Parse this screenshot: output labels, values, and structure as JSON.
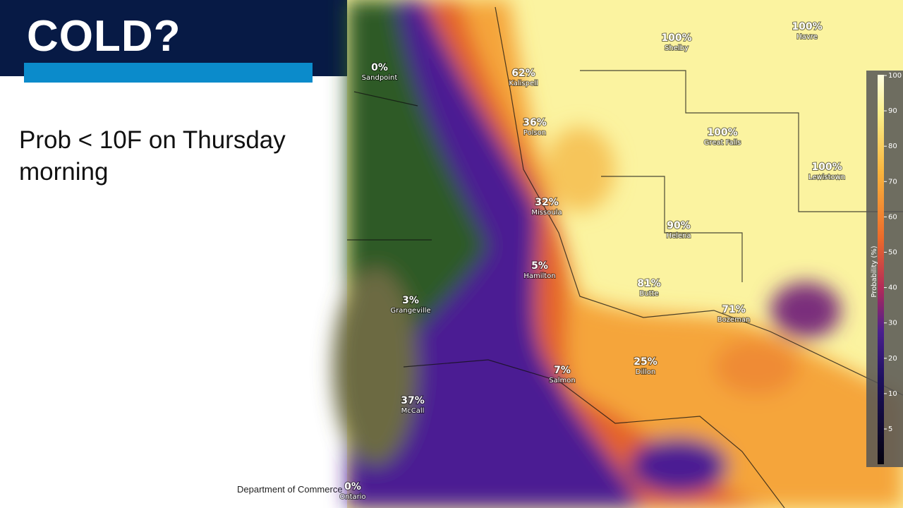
{
  "header": {
    "title": "COLD?"
  },
  "subtitle": "Prob < 10F on Thursday morning",
  "footer": "Department of Commerce",
  "map": {
    "cities": [
      {
        "name": "Sandpoint",
        "prob": "0%"
      },
      {
        "name": "Kalispell",
        "prob": "62%"
      },
      {
        "name": "Shelby",
        "prob": "100%"
      },
      {
        "name": "Havre",
        "prob": "100%"
      },
      {
        "name": "Polson",
        "prob": "36%"
      },
      {
        "name": "Great Falls",
        "prob": "100%"
      },
      {
        "name": "Lewistown",
        "prob": "100%"
      },
      {
        "name": "Missoula",
        "prob": "32%"
      },
      {
        "name": "Helena",
        "prob": "90%"
      },
      {
        "name": "Hamilton",
        "prob": "5%"
      },
      {
        "name": "Butte",
        "prob": "81%"
      },
      {
        "name": "Bozeman",
        "prob": "71%"
      },
      {
        "name": "Grangeville",
        "prob": "3%"
      },
      {
        "name": "Salmon",
        "prob": "7%"
      },
      {
        "name": "Dillon",
        "prob": "25%"
      },
      {
        "name": "McCall",
        "prob": "37%"
      },
      {
        "name": "Ontario",
        "prob": "0%"
      }
    ],
    "colorbar": {
      "label": "Probability (%)",
      "ticks": [
        100,
        90,
        80,
        70,
        60,
        50,
        40,
        30,
        20,
        10,
        5
      ]
    }
  }
}
